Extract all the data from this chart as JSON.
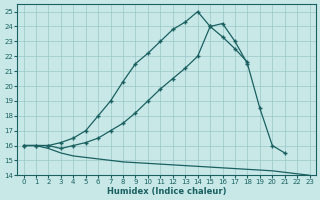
{
  "xlabel": "Humidex (Indice chaleur)",
  "bg_color": "#c8e8e8",
  "grid_color": "#9cc8c8",
  "line_color": "#1a6060",
  "xlim": [
    -0.5,
    23.5
  ],
  "ylim": [
    14,
    25.5
  ],
  "yticks": [
    14,
    15,
    16,
    17,
    18,
    19,
    20,
    21,
    22,
    23,
    24,
    25
  ],
  "xticks": [
    0,
    1,
    2,
    3,
    4,
    5,
    6,
    7,
    8,
    9,
    10,
    11,
    12,
    13,
    14,
    15,
    16,
    17,
    18,
    19,
    20,
    21,
    22,
    23
  ],
  "line1_x": [
    0,
    1,
    2,
    3,
    4,
    5,
    6,
    7,
    8,
    9,
    10,
    11,
    12,
    13,
    14,
    15,
    16,
    17,
    18
  ],
  "line1_y": [
    16.0,
    16.0,
    16.0,
    16.2,
    16.5,
    17.0,
    18.0,
    19.0,
    20.3,
    21.5,
    22.2,
    23.0,
    23.8,
    24.3,
    25.0,
    24.0,
    23.3,
    22.5,
    21.6
  ],
  "line2_x": [
    0,
    1,
    2,
    3,
    4,
    5,
    6,
    7,
    8,
    9,
    10,
    11,
    12,
    13,
    14,
    15,
    16,
    17,
    18,
    19,
    20,
    21
  ],
  "line2_y": [
    16.0,
    16.0,
    16.0,
    15.8,
    16.0,
    16.2,
    16.5,
    17.0,
    17.5,
    18.2,
    19.0,
    19.8,
    20.5,
    21.2,
    22.0,
    24.0,
    24.2,
    23.0,
    21.5,
    18.5,
    16.0,
    15.5
  ],
  "line3_x": [
    0,
    1,
    2,
    3,
    4,
    5,
    6,
    7,
    8,
    9,
    10,
    11,
    12,
    13,
    14,
    15,
    16,
    17,
    18,
    19,
    20,
    21,
    22,
    23
  ],
  "line3_y": [
    16.0,
    16.0,
    15.8,
    15.5,
    15.3,
    15.2,
    15.1,
    15.0,
    14.9,
    14.85,
    14.8,
    14.75,
    14.7,
    14.65,
    14.6,
    14.55,
    14.5,
    14.45,
    14.4,
    14.35,
    14.3,
    14.2,
    14.1,
    14.0
  ]
}
